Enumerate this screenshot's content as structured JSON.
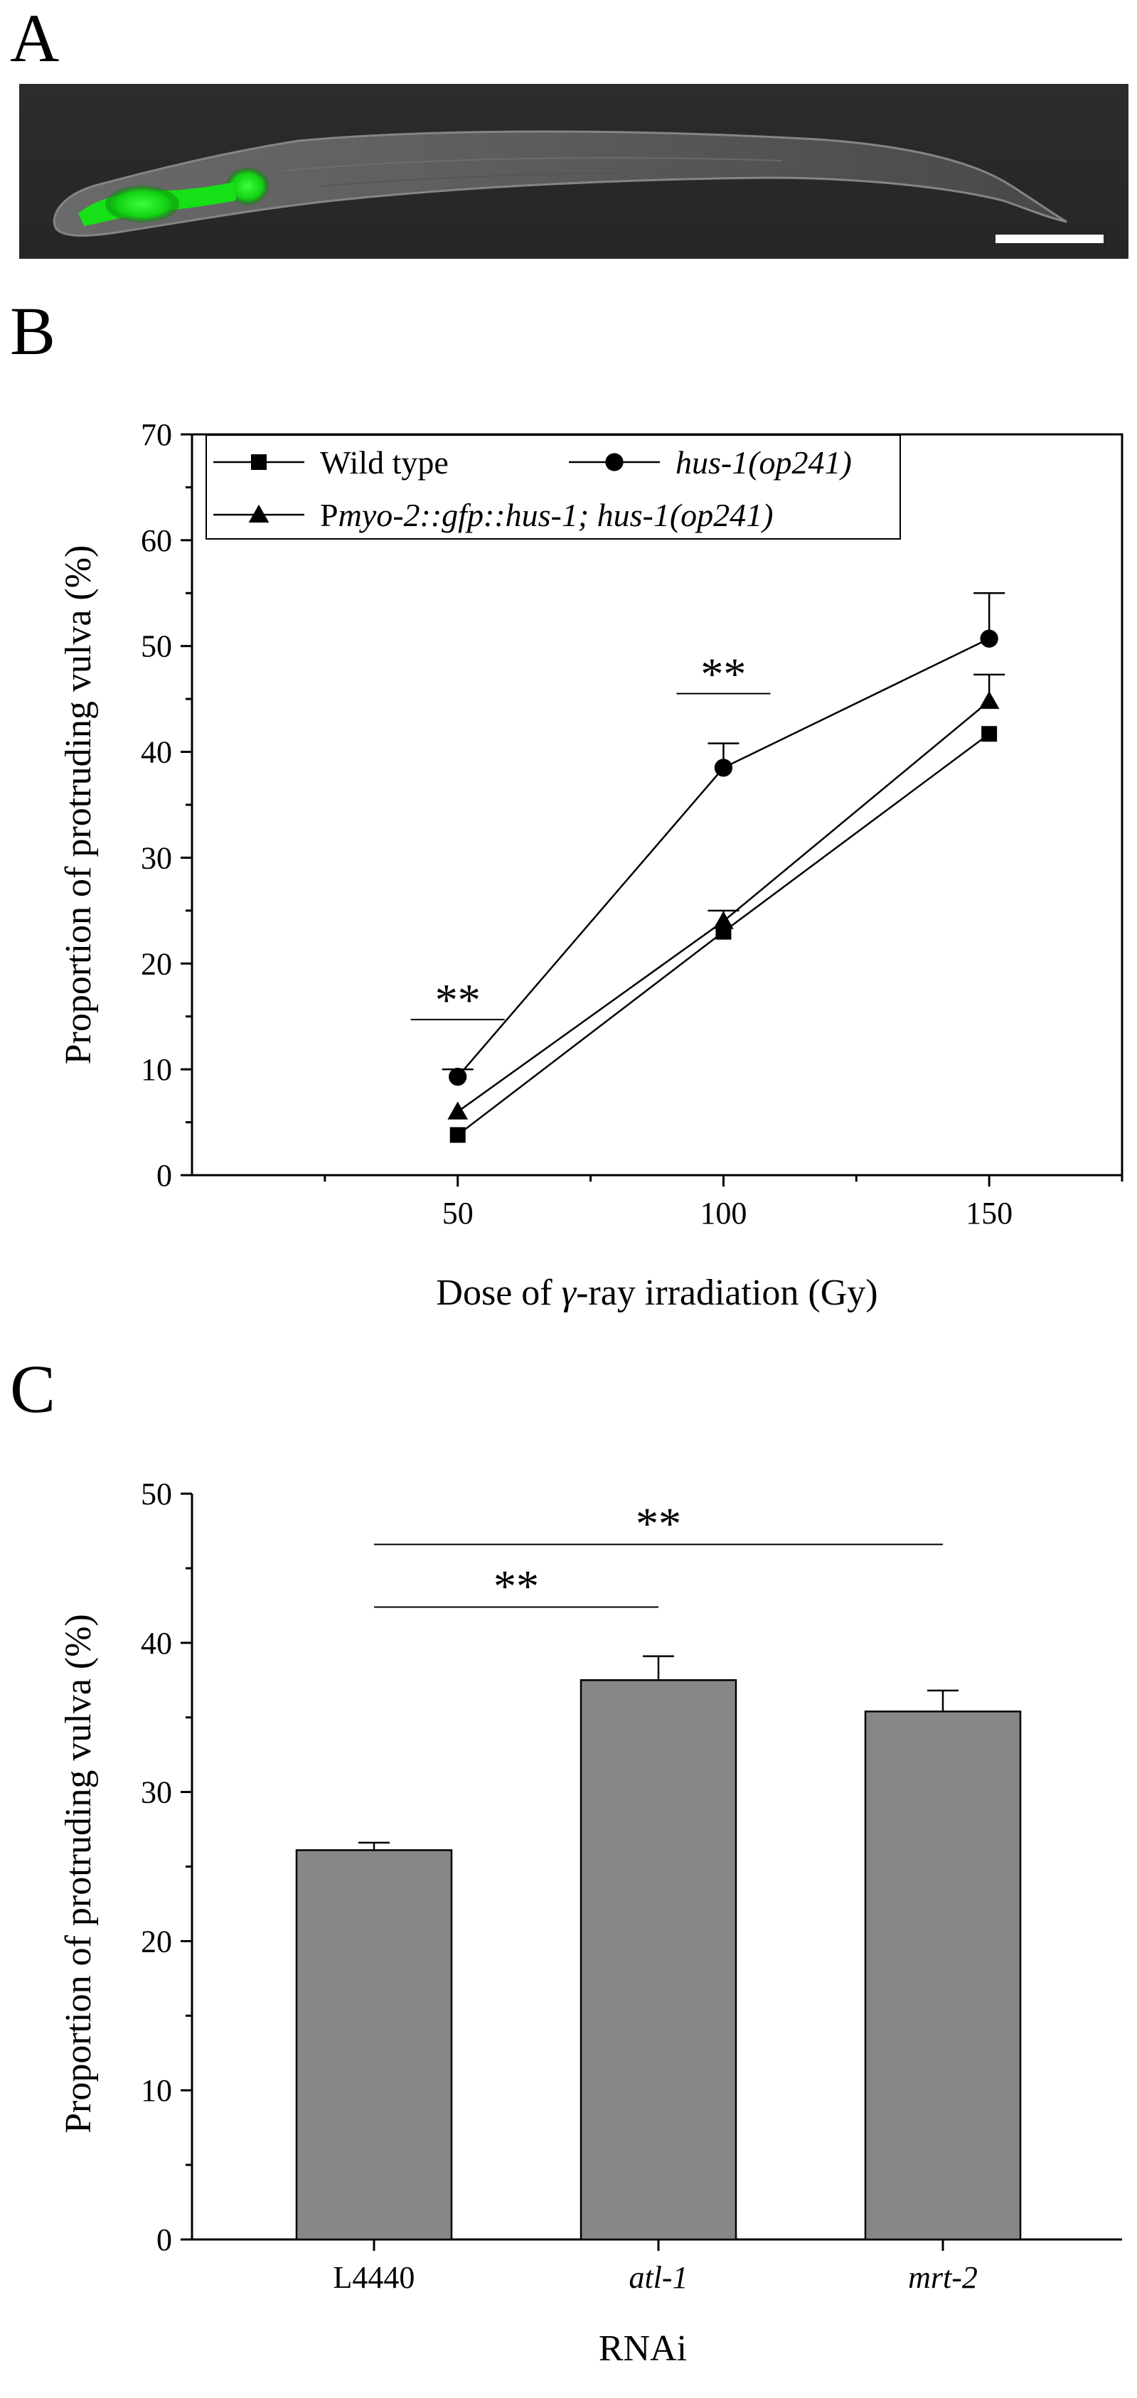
{
  "panels": {
    "a": {
      "label": "A"
    },
    "b": {
      "label": "B"
    },
    "c": {
      "label": "C"
    }
  },
  "chart_data": [
    {
      "type": "line",
      "panel": "B",
      "title": "",
      "xlabel_pre": "Dose of ",
      "xlabel_gamma": "γ",
      "xlabel_post": "-ray irradiation (Gy)",
      "ylabel": "Proportion of protruding vulva (%)",
      "x": [
        50,
        100,
        150
      ],
      "xlim": [
        0,
        175
      ],
      "ylim": [
        0,
        70
      ],
      "xticks": [
        50,
        100,
        150
      ],
      "yticks": [
        0,
        10,
        20,
        30,
        40,
        50,
        60,
        70
      ],
      "series": [
        {
          "name": "Wild type",
          "marker": "square",
          "values": [
            3.8,
            23.0,
            41.7
          ],
          "errors": [
            0.0,
            0.0,
            0.0
          ]
        },
        {
          "name": "hus-1(op241)",
          "marker": "circle",
          "values": [
            9.3,
            38.5,
            50.7
          ],
          "errors": [
            0.7,
            2.3,
            4.3
          ]
        },
        {
          "name": "Pmyo-2::gfp::hus-1; hus-1(op241)",
          "marker": "triangle",
          "values": [
            6.0,
            24.0,
            44.8
          ],
          "errors": [
            0.0,
            1.0,
            2.5
          ]
        }
      ],
      "legend": {
        "wild_type": "Wild type",
        "hus1": "hus-1(op241)",
        "rescue_P": "P",
        "rescue_italic": "myo-2::gfp::hus-1; hus-1(op241)"
      },
      "significance": [
        {
          "x": 50,
          "label": "**"
        },
        {
          "x": 100,
          "label": "**"
        }
      ]
    },
    {
      "type": "bar",
      "panel": "C",
      "title": "",
      "xlabel": "RNAi",
      "ylabel": "Proportion of protruding vulva (%)",
      "categories": [
        "L4440",
        "atl-1",
        "mrt-2"
      ],
      "values": [
        26.1,
        37.5,
        35.4
      ],
      "errors": [
        0.5,
        1.6,
        1.4
      ],
      "ylim": [
        0,
        50
      ],
      "yticks": [
        0,
        10,
        20,
        30,
        40,
        50
      ],
      "bar_color": "#878787",
      "significance": [
        {
          "from": "L4440",
          "to": "atl-1",
          "label": "**"
        },
        {
          "from": "L4440",
          "to": "mrt-2",
          "label": "**"
        }
      ]
    }
  ],
  "colors": {
    "gfp": "#19e619",
    "worm_bg": "#2a2a2a",
    "scale_bar": "#ffffff"
  }
}
